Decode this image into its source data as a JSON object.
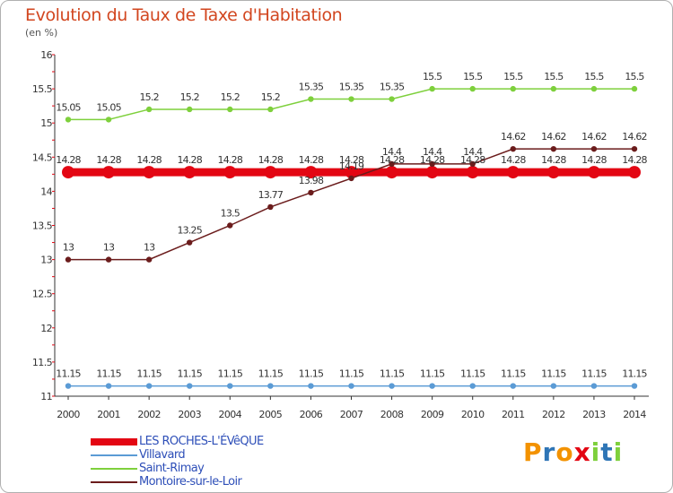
{
  "chart_data": {
    "type": "line",
    "title": "Evolution du Taux de Taxe d'Habitation",
    "unit_label": "(en %)",
    "x": [
      "2000",
      "2001",
      "2002",
      "2003",
      "2004",
      "2005",
      "2006",
      "2007",
      "2008",
      "2009",
      "2010",
      "2011",
      "2012",
      "2013",
      "2014"
    ],
    "y_ticks": [
      "11",
      "11.5",
      "12",
      "12.5",
      "13",
      "13.5",
      "14",
      "14.5",
      "15",
      "15.5",
      "16"
    ],
    "ylim": [
      11,
      16
    ],
    "grid": false,
    "legend_position": "bottom-left",
    "series": [
      {
        "name": "LES ROCHES-L'ÉVêQUE",
        "color": "#e30613",
        "values": [
          14.28,
          14.28,
          14.28,
          14.28,
          14.28,
          14.28,
          14.28,
          14.28,
          14.28,
          14.28,
          14.28,
          14.28,
          14.28,
          14.28,
          14.28
        ],
        "labels": [
          "14.28",
          "14.28",
          "14.28",
          "14.28",
          "14.28",
          "14.28",
          "14.28",
          "14.28",
          "14.28",
          "14.28",
          "14.28",
          "14.28",
          "14.28",
          "14.28",
          "14.28"
        ]
      },
      {
        "name": "Villavard",
        "color": "#5b9bd5",
        "values": [
          11.15,
          11.15,
          11.15,
          11.15,
          11.15,
          11.15,
          11.15,
          11.15,
          11.15,
          11.15,
          11.15,
          11.15,
          11.15,
          11.15,
          11.15
        ],
        "labels": [
          "11.15",
          "11.15",
          "11.15",
          "11.15",
          "11.15",
          "11.15",
          "11.15",
          "11.15",
          "11.15",
          "11.15",
          "11.15",
          "11.15",
          "11.15",
          "11.15",
          "11.15"
        ]
      },
      {
        "name": "Saint-Rimay",
        "color": "#7ed03c",
        "values": [
          15.05,
          15.05,
          15.2,
          15.2,
          15.2,
          15.2,
          15.35,
          15.35,
          15.35,
          15.5,
          15.5,
          15.5,
          15.5,
          15.5,
          15.5
        ],
        "labels": [
          "15.05",
          "15.05",
          "15.2",
          "15.2",
          "15.2",
          "15.2",
          "15.35",
          "15.35",
          "15.35",
          "15.5",
          "15.5",
          "15.5",
          "15.5",
          "15.5",
          "15.5"
        ]
      },
      {
        "name": "Montoire-sur-le-Loir",
        "color": "#6b1c1c",
        "values": [
          13,
          13,
          13,
          13.25,
          13.5,
          13.77,
          13.98,
          14.19,
          14.4,
          14.4,
          14.4,
          14.62,
          14.62,
          14.62,
          14.62
        ],
        "labels": [
          "13",
          "13",
          "13",
          "13.25",
          "13.5",
          "13.77",
          "13.98",
          "14.19",
          "14.4",
          "14.4",
          "14.4",
          "14.62",
          "14.62",
          "14.62",
          "14.62"
        ]
      }
    ]
  },
  "legend": {
    "items": [
      {
        "label": "LES ROCHES-L'ÉVêQUE",
        "color": "#e30613"
      },
      {
        "label": "Villavard",
        "color": "#5b9bd5"
      },
      {
        "label": "Saint-Rimay",
        "color": "#7ed03c"
      },
      {
        "label": "Montoire-sur-le-Loir",
        "color": "#6b1c1c"
      }
    ]
  },
  "logo": {
    "letters": [
      "P",
      "r",
      "o",
      "x",
      "i",
      "t",
      "i"
    ],
    "colors": [
      "#f39200",
      "#2e75b6",
      "#f39200",
      "#e30613",
      "#7ed03c",
      "#2e75b6",
      "#7ed03c"
    ]
  }
}
